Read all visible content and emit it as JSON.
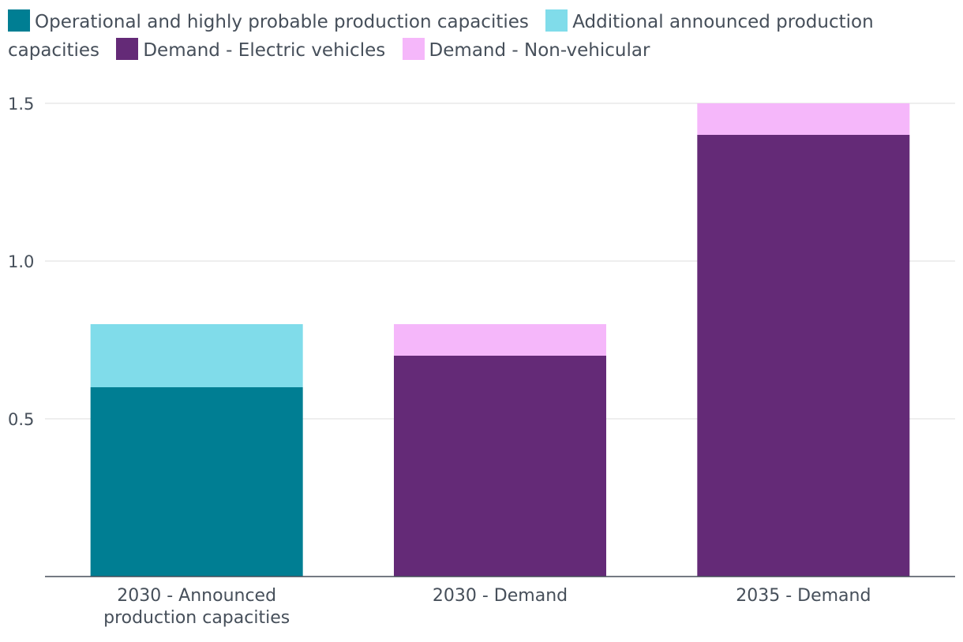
{
  "chart_data": {
    "type": "bar",
    "stacked": true,
    "title": "",
    "xlabel": "",
    "ylabel": "",
    "ylim": [
      0,
      1.5
    ],
    "yticks": [
      "0.5",
      "1.0",
      "1.5"
    ],
    "ytick_values": [
      0.5,
      1.0,
      1.5
    ],
    "grid": true,
    "legend_position": "top",
    "categories": [
      "2030 - Announced production capacities",
      "2030 - Demand",
      "2035 - Demand"
    ],
    "category_lines": [
      [
        "2030 - Announced",
        "production capacities"
      ],
      [
        "2030 - Demand"
      ],
      [
        "2035 - Demand"
      ]
    ],
    "series": [
      {
        "name": "Operational and highly probable production capacities",
        "color": "#007e93",
        "values": [
          0.6,
          0,
          0
        ]
      },
      {
        "name": "Additional announced production capacities",
        "color": "#80dcea",
        "values": [
          0.2,
          0,
          0
        ]
      },
      {
        "name": "Demand - Electric vehicles",
        "color": "#642a77",
        "values": [
          0,
          0.7,
          1.4
        ]
      },
      {
        "name": "Demand - Non-vehicular",
        "color": "#f5b7fa",
        "values": [
          0,
          0.1,
          0.1
        ]
      }
    ]
  }
}
